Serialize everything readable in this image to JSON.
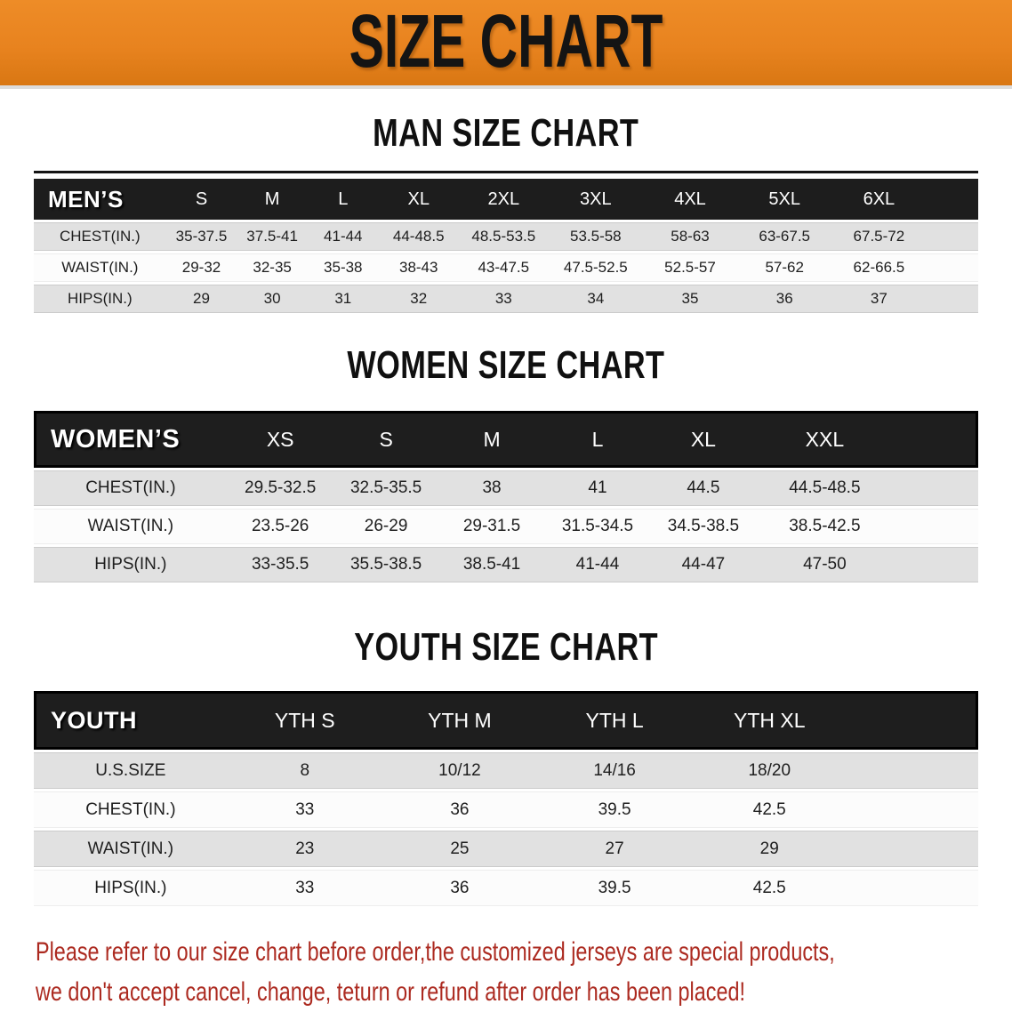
{
  "banner": {
    "title": "SIZE CHART"
  },
  "colors": {
    "banner_bg": "#E8831F",
    "table_header_bg": "#1D1D1D",
    "row_shade": "#E1E1E1",
    "footer_text": "#AC2A20"
  },
  "sections": [
    {
      "heading": "MAN SIZE CHART",
      "table": {
        "header_label": "MEN’S",
        "columns": [
          "S",
          "M",
          "L",
          "XL",
          "2XL",
          "3XL",
          "4XL",
          "5XL",
          "6XL"
        ],
        "rows": [
          {
            "label": "CHEST(IN.)",
            "values": [
              "35-37.5",
              "37.5-41",
              "41-44",
              "44-48.5",
              "48.5-53.5",
              "53.5-58",
              "58-63",
              "63-67.5",
              "67.5-72"
            ]
          },
          {
            "label": "WAIST(IN.)",
            "values": [
              "29-32",
              "32-35",
              "35-38",
              "38-43",
              "43-47.5",
              "47.5-52.5",
              "52.5-57",
              "57-62",
              "62-66.5"
            ]
          },
          {
            "label": "HIPS(IN.)",
            "values": [
              "29",
              "30",
              "31",
              "32",
              "33",
              "34",
              "35",
              "36",
              "37"
            ]
          }
        ]
      }
    },
    {
      "heading": "WOMEN SIZE CHART",
      "table": {
        "header_label": "WOMEN’S",
        "columns": [
          "XS",
          "S",
          "M",
          "L",
          "XL",
          "XXL"
        ],
        "rows": [
          {
            "label": "CHEST(IN.)",
            "values": [
              "29.5-32.5",
              "32.5-35.5",
              "38",
              "41",
              "44.5",
              "44.5-48.5"
            ]
          },
          {
            "label": "WAIST(IN.)",
            "values": [
              "23.5-26",
              "26-29",
              "29-31.5",
              "31.5-34.5",
              "34.5-38.5",
              "38.5-42.5"
            ]
          },
          {
            "label": "HIPS(IN.)",
            "values": [
              "33-35.5",
              "35.5-38.5",
              "38.5-41",
              "41-44",
              "44-47",
              "47-50"
            ]
          }
        ]
      }
    },
    {
      "heading": "YOUTH SIZE CHART",
      "table": {
        "header_label": "YOUTH",
        "columns": [
          "YTH S",
          "YTH M",
          "YTH L",
          "YTH XL"
        ],
        "rows": [
          {
            "label": "U.S.SIZE",
            "values": [
              "8",
              "10/12",
              "14/16",
              "18/20"
            ]
          },
          {
            "label": "CHEST(IN.)",
            "values": [
              "33",
              "36",
              "39.5",
              "42.5"
            ]
          },
          {
            "label": "WAIST(IN.)",
            "values": [
              "23",
              "25",
              "27",
              "29"
            ]
          },
          {
            "label": "HIPS(IN.)",
            "values": [
              "33",
              "36",
              "39.5",
              "42.5"
            ]
          }
        ]
      }
    }
  ],
  "footer": {
    "line1": "Please refer to our size chart before order,the customized jerseys are special products,",
    "line2": "we don't accept cancel, change, teturn or refund after order has been placed!"
  }
}
